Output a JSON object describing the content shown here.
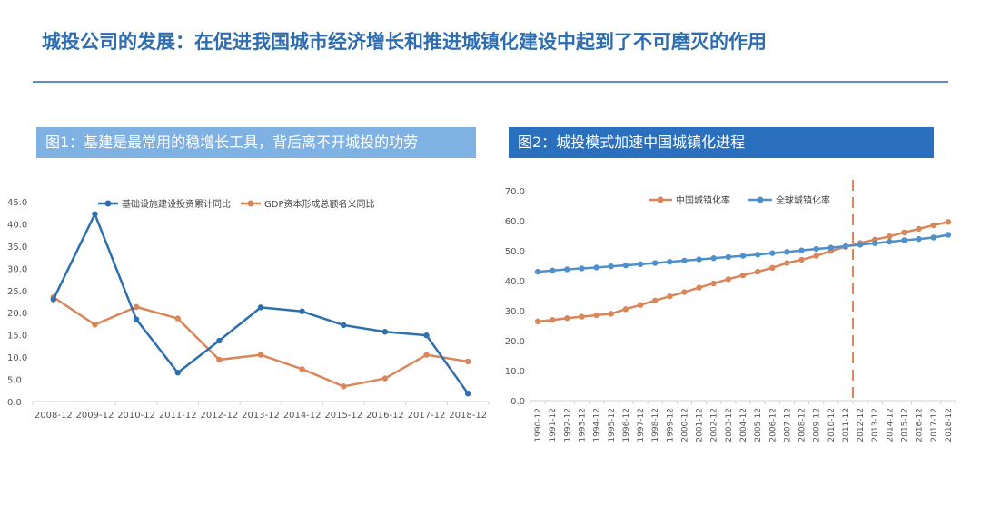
{
  "page": {
    "title": "城投公司的发展：在促进我国城市经济增长和推进城镇化建设中起到了不可磨灭的作用"
  },
  "colors": {
    "title": "#2f6db1",
    "blue_series": "#2e6fb0",
    "orange_series": "#d9865a",
    "dashed_line": "#d9865a"
  },
  "chart_data": [
    {
      "type": "line",
      "panel_title": "图1：基建是最常用的稳增长工具，背后离不开城投的功劳",
      "x": [
        "2008-12",
        "2009-12",
        "2010-12",
        "2011-12",
        "2012-12",
        "2013-12",
        "2014-12",
        "2015-12",
        "2016-12",
        "2017-12",
        "2018-12"
      ],
      "ylim": [
        0,
        45
      ],
      "yticks": [
        "0.0",
        "5.0",
        "10.0",
        "15.0",
        "20.0",
        "25.0",
        "30.0",
        "35.0",
        "40.0",
        "45.0"
      ],
      "legend_position": "top",
      "series": [
        {
          "name": "基础设施建设投资累计同比",
          "color": "#2e6fb0",
          "values": [
            23.0,
            42.2,
            18.5,
            6.5,
            13.7,
            21.2,
            20.3,
            17.2,
            15.7,
            14.9,
            1.8
          ]
        },
        {
          "name": "GDP资本形成总额名义同比",
          "color": "#d9865a",
          "values": [
            23.5,
            17.3,
            21.3,
            18.7,
            9.4,
            10.5,
            7.3,
            3.4,
            5.2,
            10.5,
            9.0
          ]
        }
      ]
    },
    {
      "type": "line",
      "panel_title": "图2：城投模式加速中国城镇化进程",
      "x": [
        "1990-12",
        "1991-12",
        "1992-12",
        "1993-12",
        "1994-12",
        "1995-12",
        "1996-12",
        "1997-12",
        "1998-12",
        "1999-12",
        "2000-12",
        "2001-12",
        "2002-12",
        "2003-12",
        "2004-12",
        "2005-12",
        "2006-12",
        "2007-12",
        "2008-12",
        "2009-12",
        "2010-12",
        "2011-12",
        "2012-12",
        "2013-12",
        "2014-12",
        "2015-12",
        "2016-12",
        "2017-12",
        "2018-12"
      ],
      "ylim": [
        0,
        70
      ],
      "yticks": [
        "0.0",
        "10.0",
        "20.0",
        "30.0",
        "40.0",
        "50.0",
        "60.0",
        "70.0"
      ],
      "legend_position": "top",
      "marker_line_x": "2011-12",
      "series": [
        {
          "name": "中国城镇化率",
          "color": "#d9865a",
          "values": [
            26.4,
            26.9,
            27.5,
            28.0,
            28.5,
            29.0,
            30.5,
            31.9,
            33.4,
            34.8,
            36.2,
            37.7,
            39.1,
            40.5,
            41.8,
            43.0,
            44.3,
            45.9,
            47.0,
            48.3,
            49.9,
            51.3,
            52.6,
            53.7,
            54.8,
            56.1,
            57.3,
            58.5,
            59.6
          ]
        },
        {
          "name": "全球城镇化率",
          "color": "#4f8fcb",
          "values": [
            43.0,
            43.4,
            43.8,
            44.1,
            44.4,
            44.8,
            45.1,
            45.5,
            45.9,
            46.3,
            46.7,
            47.1,
            47.5,
            47.9,
            48.3,
            48.7,
            49.2,
            49.6,
            50.1,
            50.6,
            51.0,
            51.5,
            52.0,
            52.5,
            53.0,
            53.5,
            53.9,
            54.4,
            55.3
          ]
        }
      ]
    }
  ]
}
